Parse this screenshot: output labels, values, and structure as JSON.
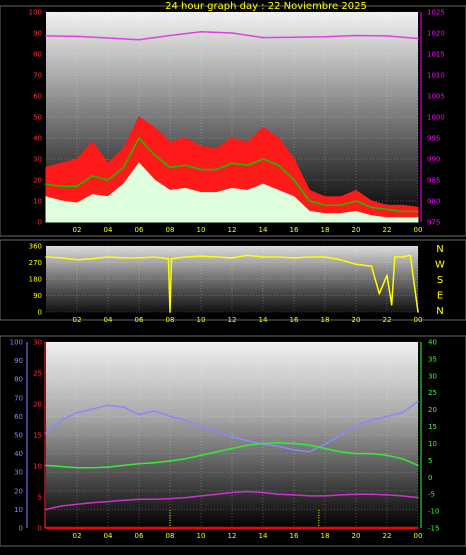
{
  "title": "24 hour graph day : 22 Noviembre 2025",
  "colors": {
    "wind_speed": "#ff1a1a",
    "wind_avg": "#00cc00",
    "wind_low": "#ddffdd",
    "pressure": "#e040e0",
    "direction": "#ffff00",
    "temperature": "#33ee33",
    "humidity": "#8888ff",
    "dewpoint": "#cc33cc",
    "rain": "#ff0000",
    "axis_yellow": "#ffff00",
    "axis_magenta": "#ff00ff",
    "axis_red": "#ff3030",
    "axis_blue": "#8888ff",
    "axis_green": "#33ff33"
  },
  "compass": [
    "N",
    "W",
    "S",
    "E",
    "N"
  ],
  "chart_data": [
    {
      "type": "line",
      "name": "wind-pressure",
      "title": "24 hour graph day : 22 Noviembre 2025",
      "x_ticks": [
        "02",
        "04",
        "06",
        "08",
        "10",
        "12",
        "14",
        "16",
        "18",
        "20",
        "22",
        "00"
      ],
      "x_hours": [
        2,
        4,
        6,
        8,
        10,
        12,
        14,
        16,
        18,
        20,
        22,
        24
      ],
      "y_left_ticks": [
        "0",
        "10",
        "20",
        "30",
        "40",
        "50",
        "60",
        "70",
        "80",
        "90",
        "100"
      ],
      "y_left_range": [
        0,
        100
      ],
      "y_right_ticks": [
        "975",
        "980",
        "985",
        "990",
        "995",
        "1000",
        "1005",
        "1010",
        "1015",
        "1020",
        "1025"
      ],
      "y_right_range": [
        975,
        1025
      ],
      "x_range": [
        0,
        24
      ],
      "series": [
        {
          "key": "gust",
          "color_key": "wind_speed",
          "x": [
            0,
            1,
            2,
            3,
            4,
            5,
            6,
            7,
            8,
            9,
            10,
            11,
            12,
            13,
            14,
            15,
            16,
            17,
            18,
            19,
            20,
            21,
            22,
            23,
            24
          ],
          "values": [
            26,
            28,
            30,
            38,
            28,
            35,
            50,
            45,
            38,
            40,
            36,
            35,
            40,
            38,
            45,
            40,
            30,
            15,
            12,
            12,
            15,
            10,
            8,
            8,
            7
          ]
        },
        {
          "key": "avg",
          "color_key": "wind_avg",
          "x": [
            0,
            1,
            2,
            3,
            4,
            5,
            6,
            7,
            8,
            9,
            10,
            11,
            12,
            13,
            14,
            15,
            16,
            17,
            18,
            19,
            20,
            21,
            22,
            23,
            24
          ],
          "values": [
            18,
            17,
            17,
            22,
            20,
            26,
            40,
            32,
            26,
            27,
            25,
            25,
            28,
            27,
            30,
            27,
            20,
            10,
            8,
            8,
            10,
            7,
            6,
            5,
            5
          ]
        },
        {
          "key": "low",
          "color_key": "wind_low",
          "x": [
            0,
            1,
            2,
            3,
            4,
            5,
            6,
            7,
            8,
            9,
            10,
            11,
            12,
            13,
            14,
            15,
            16,
            17,
            18,
            19,
            20,
            21,
            22,
            23,
            24
          ],
          "values": [
            12,
            10,
            9,
            13,
            12,
            18,
            28,
            20,
            15,
            16,
            14,
            14,
            16,
            15,
            18,
            15,
            12,
            5,
            4,
            4,
            5,
            3,
            2,
            2,
            2
          ]
        },
        {
          "key": "pressure",
          "axis": "right",
          "color_key": "pressure",
          "x": [
            0,
            2,
            4,
            5,
            6,
            8,
            10,
            12,
            14,
            16,
            18,
            20,
            22,
            24
          ],
          "values": [
            1019.3,
            1019.2,
            1018.8,
            1018.6,
            1018.4,
            1019.4,
            1020.3,
            1020.0,
            1018.9,
            1019.0,
            1019.1,
            1019.4,
            1019.3,
            1018.7
          ]
        }
      ]
    },
    {
      "type": "line",
      "name": "wind-direction",
      "x_ticks": [
        "02",
        "04",
        "06",
        "08",
        "10",
        "12",
        "14",
        "16",
        "18",
        "20",
        "22",
        "00"
      ],
      "x_hours": [
        2,
        4,
        6,
        8,
        10,
        12,
        14,
        16,
        18,
        20,
        22,
        24
      ],
      "y_left_ticks": [
        "0",
        "90",
        "180",
        "270",
        "360"
      ],
      "y_range": [
        0,
        360
      ],
      "x_range": [
        0,
        24
      ],
      "series": [
        {
          "key": "direction",
          "color_key": "direction",
          "x": [
            0,
            1,
            2,
            3,
            4,
            5,
            6,
            7,
            7.9,
            8,
            8.1,
            9,
            10,
            11,
            12,
            13,
            14,
            15,
            16,
            17,
            18,
            19,
            20,
            21,
            21.5,
            22,
            22.3,
            22.5,
            23,
            23.5,
            24
          ],
          "values": [
            300,
            295,
            285,
            290,
            300,
            295,
            295,
            300,
            290,
            0,
            290,
            300,
            305,
            300,
            295,
            310,
            300,
            300,
            295,
            300,
            300,
            285,
            260,
            250,
            100,
            200,
            40,
            300,
            300,
            310,
            0
          ]
        }
      ]
    },
    {
      "type": "line",
      "name": "temperature-humidity",
      "x_ticks": [
        "02",
        "04",
        "06",
        "08",
        "10",
        "12",
        "14",
        "16",
        "18",
        "20",
        "22",
        "00"
      ],
      "x_hours": [
        2,
        4,
        6,
        8,
        10,
        12,
        14,
        16,
        18,
        20,
        22,
        24
      ],
      "y_humidity_ticks": [
        "0",
        "10",
        "20",
        "30",
        "40",
        "50",
        "60",
        "70",
        "80",
        "90",
        "100"
      ],
      "y_humidity_range": [
        0,
        100
      ],
      "y_rain_ticks": [
        "0",
        "5",
        "10",
        "15",
        "20",
        "25",
        "30"
      ],
      "y_rain_range": [
        0,
        30
      ],
      "y_temp_ticks": [
        "-15",
        "-10",
        "-5",
        "0",
        "5",
        "10",
        "15",
        "20",
        "25",
        "30",
        "35",
        "40"
      ],
      "y_temp_range": [
        -15,
        40
      ],
      "x_range": [
        0,
        24
      ],
      "series": [
        {
          "key": "humidity",
          "axis": "humidity",
          "color_key": "humidity",
          "x": [
            0,
            1,
            2,
            3,
            4,
            5,
            6,
            7,
            8,
            9,
            10,
            11,
            12,
            13,
            14,
            15,
            16,
            17,
            18,
            19,
            20,
            21,
            22,
            23,
            24
          ],
          "values": [
            51,
            58,
            62,
            64,
            66,
            65,
            61,
            63,
            60,
            58,
            54,
            52,
            49,
            47,
            45,
            44,
            42,
            41,
            45,
            50,
            55,
            58,
            60,
            62,
            68
          ]
        },
        {
          "key": "temperature",
          "axis": "temp",
          "color_key": "temperature",
          "x": [
            0,
            1,
            2,
            3,
            4,
            5,
            6,
            7,
            8,
            9,
            10,
            11,
            12,
            13,
            14,
            15,
            16,
            17,
            18,
            19,
            20,
            21,
            22,
            23,
            24
          ],
          "values": [
            3.5,
            3.2,
            2.8,
            2.8,
            3.0,
            3.5,
            4.0,
            4.3,
            4.8,
            5.5,
            6.5,
            7.5,
            8.5,
            9.5,
            10.0,
            10.2,
            10.0,
            9.5,
            8.5,
            7.5,
            7.0,
            7.0,
            6.5,
            5.5,
            3.5
          ]
        },
        {
          "key": "dewpoint",
          "axis": "temp",
          "color_key": "dewpoint",
          "x": [
            0,
            1,
            2,
            3,
            4,
            5,
            6,
            7,
            8,
            9,
            10,
            11,
            12,
            13,
            14,
            15,
            16,
            17,
            18,
            19,
            20,
            21,
            22,
            23,
            24
          ],
          "values": [
            -9.5,
            -8.5,
            -8.0,
            -7.5,
            -7.2,
            -6.8,
            -6.5,
            -6.5,
            -6.3,
            -6.0,
            -5.5,
            -5.0,
            -4.5,
            -4.2,
            -4.5,
            -5.0,
            -5.2,
            -5.5,
            -5.5,
            -5.2,
            -5.0,
            -5.0,
            -5.2,
            -5.5,
            -6.0
          ]
        },
        {
          "key": "rain",
          "axis": "rain",
          "color_key": "rain",
          "x": [
            0,
            24
          ],
          "values": [
            0,
            0
          ]
        }
      ],
      "markers_hours": [
        8,
        17.6
      ]
    }
  ]
}
